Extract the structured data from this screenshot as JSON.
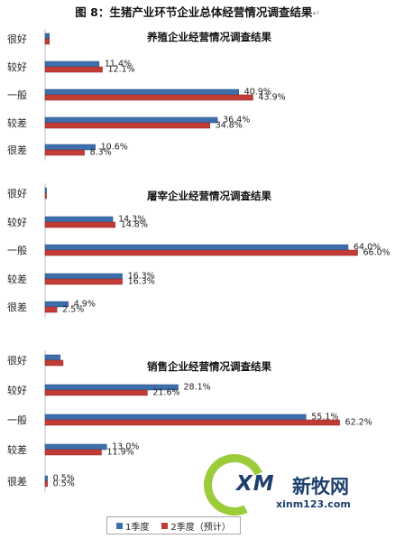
{
  "figure_title": "图 8：生猪产业环节企业总体经营情况调查结果",
  "legend": [
    {
      "label": "1季度",
      "color": "#3d6fab"
    },
    {
      "label": "2季度（预计）",
      "color": "#c23b35"
    }
  ],
  "watermark": {
    "logo": "XM",
    "brand": "新牧网",
    "url": "xinm123.com"
  },
  "chart_data": [
    {
      "type": "bar",
      "orientation": "horizontal",
      "title": "养殖企业经营情况调查结果",
      "categories": [
        "很好",
        "较好",
        "一般",
        "较差",
        "很差"
      ],
      "series": [
        {
          "name": "1季度",
          "values": [
            0.9,
            11.4,
            40.9,
            36.4,
            10.6
          ],
          "labels": [
            "",
            "11.4%",
            "40.9%",
            "36.4%",
            "10.6%"
          ]
        },
        {
          "name": "2季度（预计）",
          "values": [
            0.9,
            12.1,
            43.9,
            34.8,
            8.3
          ],
          "labels": [
            "",
            "12.1%",
            "43.9%",
            "34.8%",
            "8.3%"
          ]
        }
      ],
      "xlim": [
        0,
        70
      ]
    },
    {
      "type": "bar",
      "orientation": "horizontal",
      "title": "屠宰企业经营情况调查结果",
      "categories": [
        "很好",
        "较好",
        "一般",
        "较差",
        "很差"
      ],
      "series": [
        {
          "name": "1季度",
          "values": [
            0.3,
            14.3,
            64.0,
            16.3,
            4.9
          ],
          "labels": [
            "",
            "14.3%",
            "64.0%",
            "16.3%",
            "4.9%"
          ]
        },
        {
          "name": "2季度（预计）",
          "values": [
            0.3,
            14.8,
            66.0,
            16.3,
            2.5
          ],
          "labels": [
            "",
            "14.8%",
            "66.0%",
            "16.3%",
            "2.5%"
          ]
        }
      ],
      "xlim": [
        0,
        70
      ]
    },
    {
      "type": "bar",
      "orientation": "horizontal",
      "title": "销售企业经营情况调查结果",
      "categories": [
        "很好",
        "较好",
        "一般",
        "较差",
        "很差"
      ],
      "series": [
        {
          "name": "1季度",
          "values": [
            3.2,
            28.1,
            55.1,
            13.0,
            0.5
          ],
          "labels": [
            "",
            "28.1%",
            "55.1%",
            "13.0%",
            "0.5%"
          ]
        },
        {
          "name": "2季度（预计）",
          "values": [
            3.8,
            21.6,
            62.2,
            11.9,
            0.5
          ],
          "labels": [
            "",
            "21.6%",
            "62.2%",
            "11.9%",
            "0.5%"
          ]
        }
      ],
      "xlim": [
        0,
        70
      ]
    }
  ]
}
